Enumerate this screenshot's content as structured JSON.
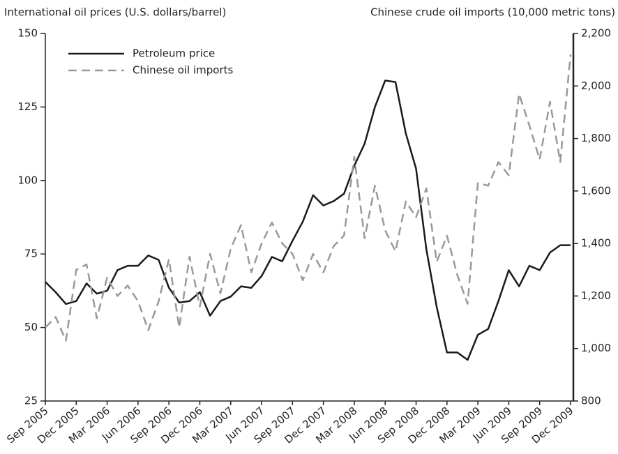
{
  "chart_data": {
    "type": "line",
    "y_label": "International oil prices (U.S. dollars/barrel)",
    "y2_label": "Chinese crude oil imports (10,000 metric tons)",
    "categories": [
      "Sep 2005",
      null,
      null,
      "Dec 2005",
      null,
      null,
      "Mar 2006",
      null,
      null,
      "Jun 2006",
      null,
      null,
      "Sep 2006",
      null,
      null,
      "Dec 2006",
      null,
      null,
      "Mar 2007",
      null,
      null,
      "Jun 2007",
      null,
      null,
      "Sep 2007",
      null,
      null,
      "Dec 2007",
      null,
      null,
      "Mar 2008",
      null,
      null,
      "Jun 2008",
      null,
      null,
      "Sep 2008",
      null,
      null,
      "Dec 2008",
      null,
      null,
      "Mar 2009",
      null,
      null,
      "Jun 2009",
      null,
      null,
      "Sep 2009",
      null,
      null,
      "Dec 2009"
    ],
    "series": [
      {
        "name": "Petroleum price",
        "color": "#1a1a1a",
        "dashed": false,
        "axis": "y",
        "values": [
          65.5,
          62,
          58,
          59,
          65,
          61.5,
          62.5,
          69.5,
          71,
          71,
          74.5,
          73,
          63.5,
          58.5,
          59,
          62,
          54,
          59,
          60.5,
          64,
          63.5,
          67.5,
          74,
          72.5,
          79.5,
          86,
          95,
          91.5,
          93,
          95.5,
          105,
          112.5,
          125,
          134,
          133.5,
          116,
          104,
          76.5,
          57,
          41.5,
          41.5,
          39,
          47.5,
          49.5,
          59,
          69.5,
          64,
          71,
          69.5,
          75.5,
          78,
          78
        ]
      },
      {
        "name": "Chinese oil imports",
        "color": "#999999",
        "dashed": true,
        "axis": "y2",
        "values": [
          1080,
          1120,
          1030,
          1300,
          1320,
          1115,
          1270,
          1200,
          1240,
          1180,
          1070,
          1180,
          1340,
          1080,
          1350,
          1160,
          1360,
          1210,
          1380,
          1470,
          1290,
          1400,
          1480,
          1400,
          1360,
          1260,
          1360,
          1290,
          1390,
          1430,
          1730,
          1420,
          1620,
          1450,
          1370,
          1560,
          1500,
          1610,
          1330,
          1430,
          1280,
          1170,
          1630,
          1620,
          1710,
          1660,
          1970,
          1850,
          1720,
          1940,
          1710,
          2120
        ]
      }
    ],
    "ylim": [
      25,
      150
    ],
    "yticks": [
      25,
      50,
      75,
      100,
      125,
      150
    ],
    "y2lim": [
      800,
      2200
    ],
    "y2ticks": [
      800,
      {
        "value": 1000,
        "label": "1,000"
      },
      {
        "value": 1200,
        "label": "1,200"
      },
      {
        "value": 1400,
        "label": "1,400"
      },
      {
        "value": 1600,
        "label": "1,600"
      },
      {
        "value": 1800,
        "label": "1,800"
      },
      {
        "value": 2000,
        "label": "2,000"
      },
      {
        "value": 2200,
        "label": "2,200"
      }
    ],
    "legend": "top-left",
    "grid": false
  }
}
